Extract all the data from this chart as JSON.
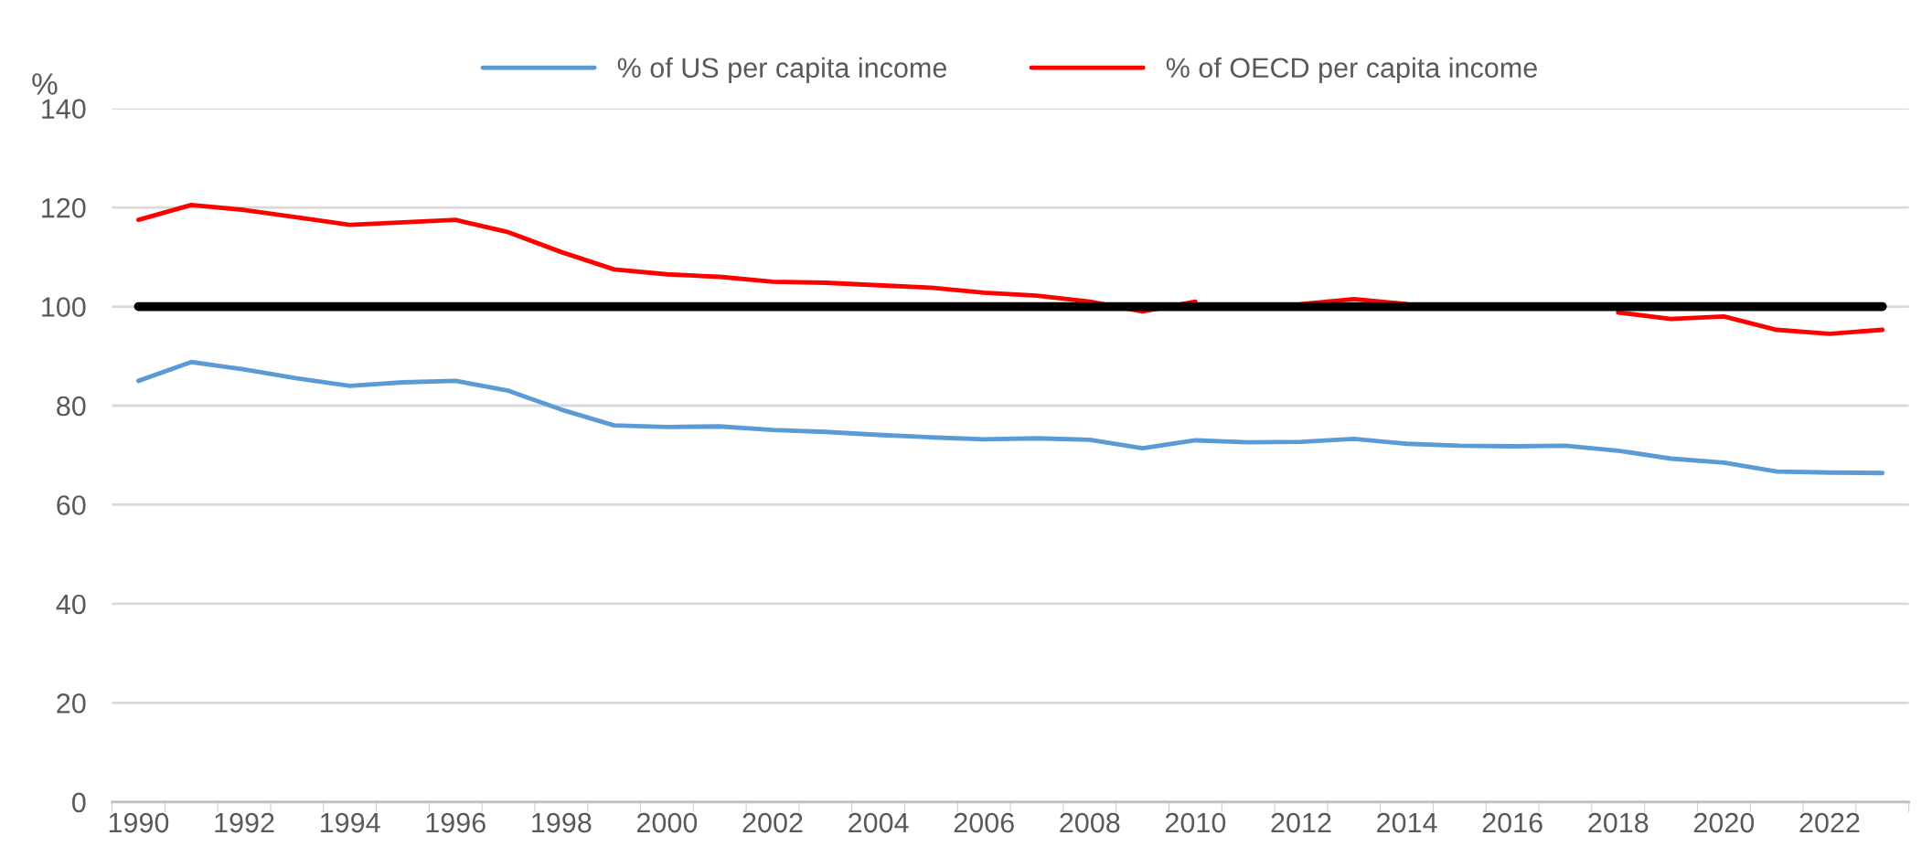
{
  "chart_data": {
    "type": "line",
    "ylabel": "%",
    "categories": [
      "1990",
      null,
      "1992",
      null,
      "1994",
      null,
      "1996",
      null,
      "1998",
      null,
      "2000",
      null,
      "2002",
      null,
      "2004",
      null,
      "2006",
      null,
      "2008",
      null,
      "2010",
      null,
      "2012",
      null,
      "2014",
      null,
      "2016",
      null,
      "2018",
      null,
      "2020",
      null,
      "2022",
      null
    ],
    "series": [
      {
        "name": "% of US per capita income",
        "color": "#5b9bd5",
        "values": [
          85,
          88.8,
          87.3,
          85.5,
          84,
          84.7,
          85,
          83,
          79.2,
          76,
          75.7,
          75.8,
          75.1,
          74.7,
          74.1,
          73.6,
          73.2,
          73.4,
          73.1,
          71.4,
          73,
          72.6,
          72.7,
          73.3,
          72.3,
          71.9,
          71.8,
          71.9,
          70.9,
          69.3,
          68.5,
          66.7,
          66.5,
          66.4
        ]
      },
      {
        "name": "% of OECD per capita income",
        "color": "#ff0000",
        "values": [
          117.5,
          120.5,
          119.5,
          118,
          116.5,
          117,
          117.5,
          115,
          111,
          107.5,
          106.5,
          106,
          105,
          104.8,
          104.3,
          103.8,
          102.8,
          102.2,
          101,
          99,
          101,
          null,
          100.5,
          101.5,
          100.5,
          null,
          null,
          null,
          98.8,
          97.5,
          98,
          95.3,
          94.5,
          95.3
        ]
      }
    ],
    "ref_lines": [
      {
        "axis": "y",
        "value": 100,
        "color": "#000000"
      }
    ],
    "ylim": [
      0,
      140
    ],
    "yticks": [
      0,
      20,
      40,
      60,
      80,
      100,
      120,
      140
    ],
    "grid": "y",
    "legend": "top"
  }
}
